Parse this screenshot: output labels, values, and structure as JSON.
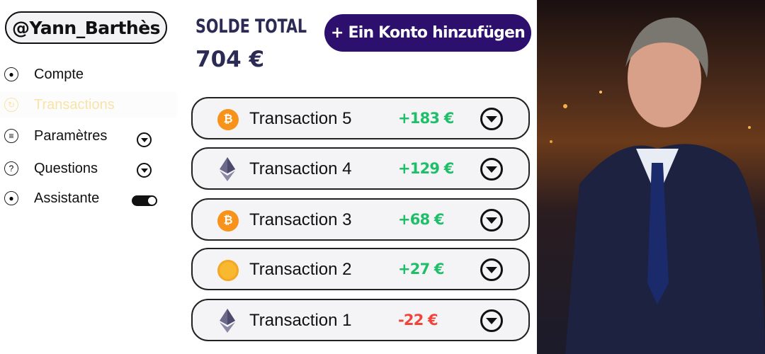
{
  "sidebar": {
    "handle": "@Yann_Barthès",
    "items": [
      {
        "label": "Compte",
        "icon": "user-icon"
      },
      {
        "label": "Transactions",
        "icon": "refresh-icon",
        "active": true
      },
      {
        "label": "Paramètres",
        "icon": "sliders-icon"
      },
      {
        "label": "Questions",
        "icon": "question-icon"
      },
      {
        "label": "Assistante",
        "icon": "assistant-icon",
        "toggle": true
      }
    ]
  },
  "header": {
    "title": "SOLDE TOTAL",
    "total": "704 €",
    "add_button": "+ Ein Konto hinzufügen"
  },
  "transactions": [
    {
      "name": "Transaction 5",
      "amount": "+183 €",
      "coin": "bitcoin"
    },
    {
      "name": "Transaction 4",
      "amount": "+129 €",
      "coin": "ethereum"
    },
    {
      "name": "Transaction 3",
      "amount": "+68 €",
      "coin": "bitcoin"
    },
    {
      "name": "Transaction 2",
      "amount": "+27 €",
      "coin": "gold-coin"
    },
    {
      "name": "Transaction 1",
      "amount": "-22 €",
      "coin": "ethereum"
    }
  ],
  "colors": {
    "accent": "#2d0f6e",
    "positive": "#1fbf6a",
    "negative": "#f0443a",
    "active_nav": "#f8e3a8",
    "bitcoin": "#f7931a"
  }
}
